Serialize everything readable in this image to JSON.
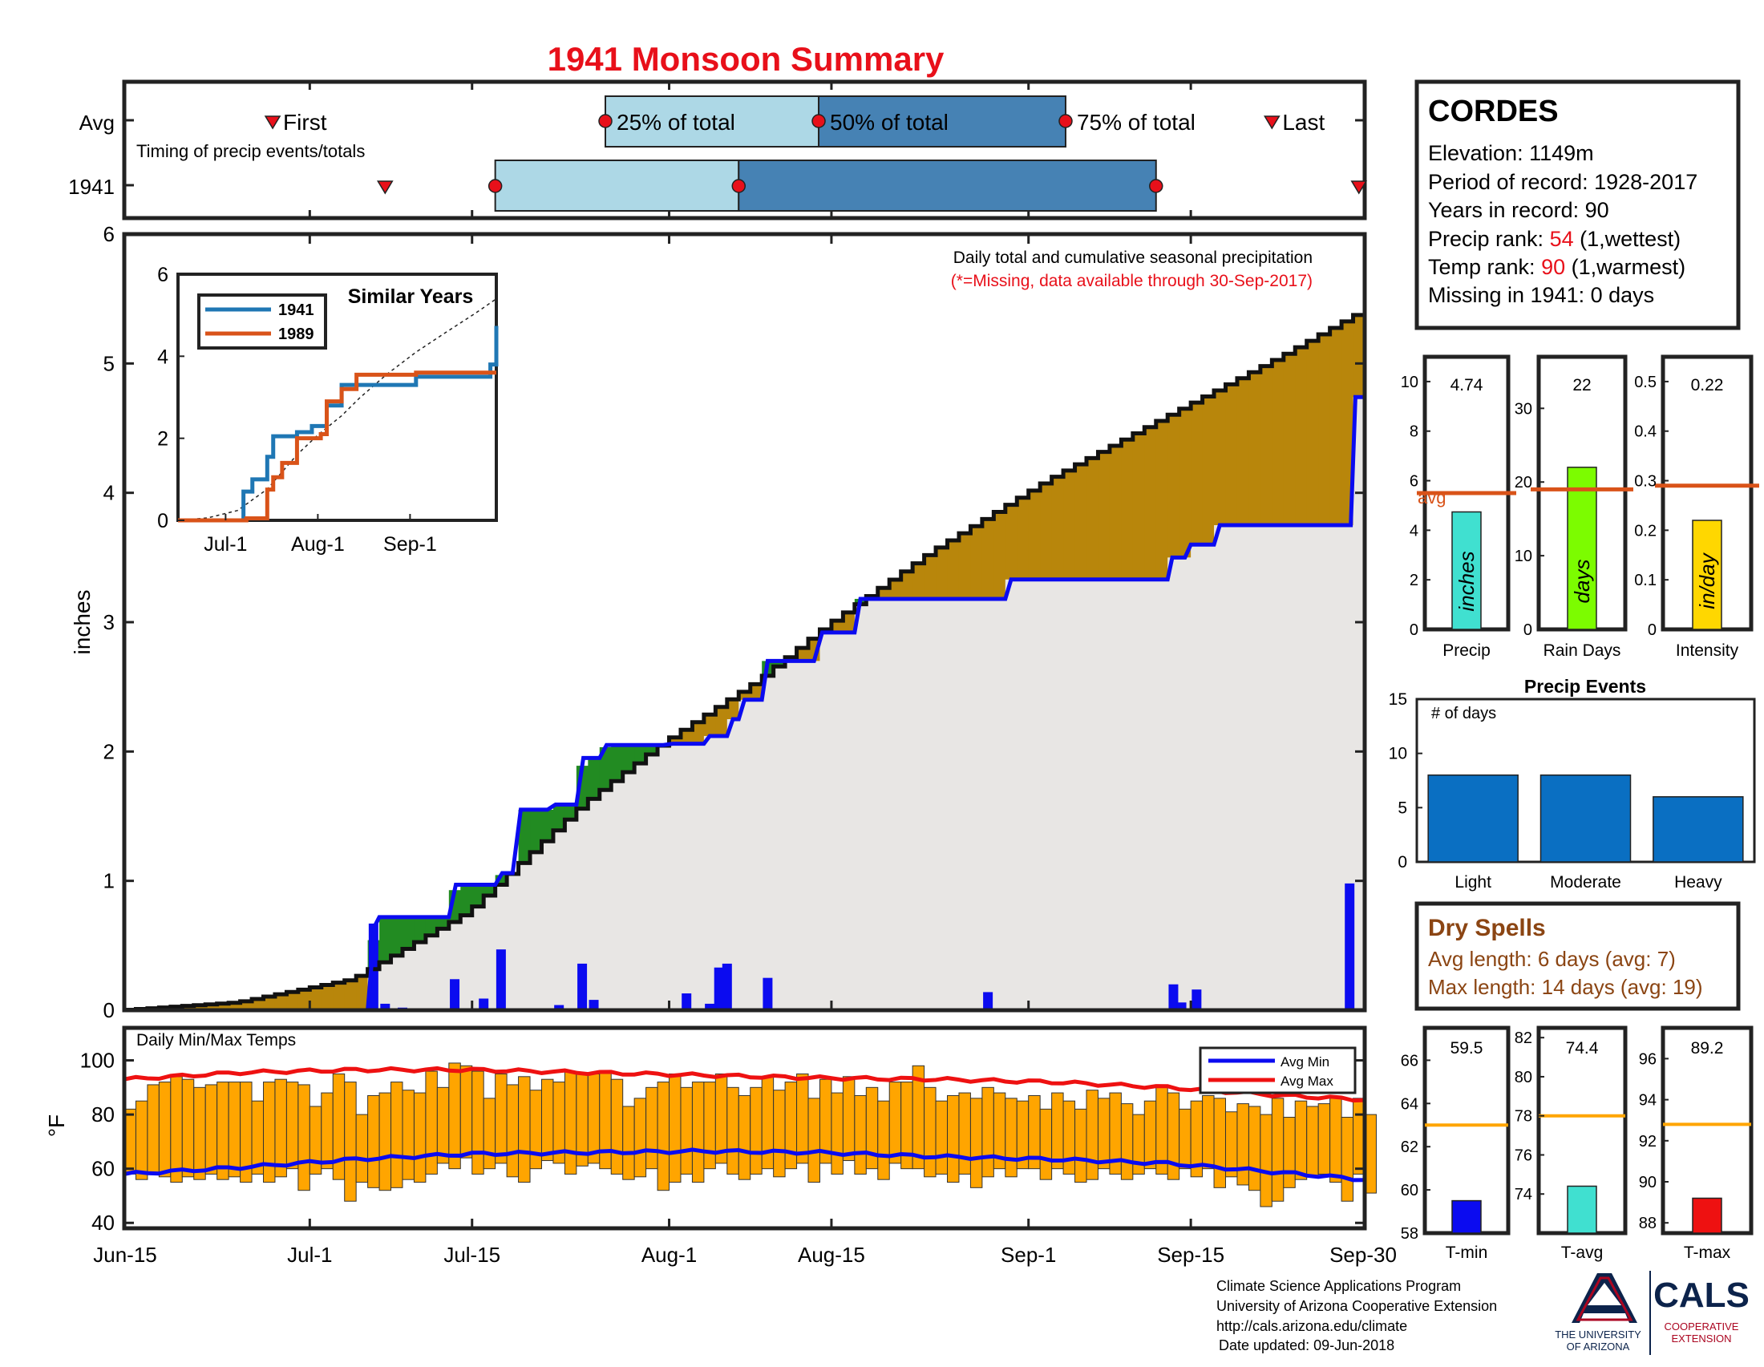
{
  "title": "1941 Monsoon Summary",
  "timing": {
    "label": "Timing of precip events/totals",
    "row_avg": "Avg",
    "row_year": "1941",
    "first": "First",
    "last": "Last",
    "p25": "25% of total",
    "p50": "50% of total",
    "p75": "75% of total",
    "avg_days": {
      "first": 12.8,
      "p25": 41.5,
      "p50": 59.9,
      "p75": 81.2,
      "last": 99.0
    },
    "year_days": {
      "first": 22.5,
      "p25": 32.0,
      "p50": 53.0,
      "p75": 89.0,
      "last": 106.5
    }
  },
  "station": {
    "name": "CORDES",
    "elevation": "Elevation: 1149m",
    "period": "Period of record: 1928-2017",
    "years": "Years in record: 90",
    "precip_rank_label": "Precip rank: ",
    "precip_rank": "54",
    "precip_rank_note": " (1,wettest)",
    "temp_rank_label": "Temp rank: ",
    "temp_rank": "90",
    "temp_rank_note": " (1,warmest)",
    "missing": "Missing in 1941: 0 days"
  },
  "main_chart": {
    "ylabel": "inches",
    "note1": "Daily total and cumulative seasonal precipitation",
    "note2": "(*=Missing, data available through 30-Sep-2017)",
    "x_ticks": [
      "Jun-15",
      "Jul-1",
      "Jul-15",
      "Aug-1",
      "Aug-15",
      "Sep-1",
      "Sep-15",
      "Sep-30"
    ],
    "y_ticks": [
      "0",
      "1",
      "2",
      "3",
      "4",
      "5",
      "6"
    ]
  },
  "inset": {
    "title": "Similar Years",
    "x_ticks": [
      "Jul-1",
      "Aug-1",
      "Sep-1"
    ],
    "y_ticks": [
      "0",
      "2",
      "4",
      "6"
    ],
    "legend": [
      "1941",
      "1989"
    ]
  },
  "bars_small": {
    "precip": {
      "value": "4.74",
      "unit": "inches",
      "label": "Precip",
      "avg_label": "avg"
    },
    "rain_days": {
      "value": "22",
      "unit": "days",
      "label": "Rain Days"
    },
    "intensity": {
      "value": "0.22",
      "unit": "in/day",
      "label": "Intensity"
    }
  },
  "events": {
    "title": "Precip Events",
    "ylabel": "# of days",
    "categories": [
      "Light",
      "Moderate",
      "Heavy"
    ],
    "y_ticks": [
      "0",
      "5",
      "10",
      "15"
    ]
  },
  "dry_spells": {
    "title": "Dry Spells",
    "avg": "Avg length: 6 days (avg: 7)",
    "max": "Max length: 14 days (avg: 19)"
  },
  "temps": {
    "title": "Daily Min/Max Temps",
    "ylabel": "°F",
    "y_ticks": [
      "40",
      "60",
      "80",
      "100"
    ],
    "legend_min": "Avg Min",
    "legend_max": "Avg Max",
    "tmin": {
      "value": "59.5",
      "label": "T-min"
    },
    "tavg": {
      "value": "74.4",
      "label": "T-avg"
    },
    "tmax": {
      "value": "89.2",
      "label": "T-max"
    }
  },
  "footer": {
    "line1": "Climate Science Applications Program",
    "line2": "University of Arizona Cooperative Extension",
    "line3": "http://cals.arizona.edu/climate",
    "line4": "Date updated: 09-Jun-2018",
    "ua1": "THE UNIVERSITY",
    "ua2": "OF ARIZONA",
    "cals": "CALS",
    "cals1": "COOPERATIVE",
    "cals2": "EXTENSION"
  },
  "colors": {
    "title_red": "#e8101a",
    "above": "#228b22",
    "below": "#b8860b",
    "obs": "#0b0bf0",
    "light_blue": "#add8e6",
    "steel": "#4682b4",
    "bar_orange": "#ffa500",
    "dry_brown": "#8b4513"
  },
  "chart_data": [
    {
      "type": "line",
      "title": "Daily total and cumulative seasonal precipitation",
      "ylabel": "inches",
      "xlim_days": [
        0,
        107
      ],
      "ylim": [
        0,
        6
      ],
      "x_date_labels": {
        "0": "Jun-15",
        "16": "Jul-1",
        "30": "Jul-15",
        "47": "Aug-1",
        "61": "Aug-15",
        "78": "Sep-1",
        "92": "Sep-15",
        "107": "Sep-30"
      },
      "series": [
        {
          "name": "1941",
          "x": [
            0,
            21,
            21.6,
            22,
            28,
            28.6,
            32,
            32.6,
            33.5,
            34.2,
            36.5,
            37.2,
            39,
            39.6,
            41,
            41.6,
            46.5,
            47.3,
            50,
            50.5,
            52,
            52.5,
            53,
            53.5,
            55,
            55.5,
            59.5,
            60.2,
            63,
            63.5,
            76,
            76.5,
            90,
            90.4,
            91.5,
            92,
            94,
            94.5,
            105.8,
            106.2,
            107
          ],
          "y": [
            0,
            0,
            0.65,
            0.72,
            0.72,
            0.97,
            0.97,
            1.06,
            1.06,
            1.55,
            1.55,
            1.59,
            1.59,
            1.95,
            1.95,
            2.05,
            2.05,
            2.06,
            2.06,
            2.12,
            2.12,
            2.25,
            2.25,
            2.4,
            2.4,
            2.7,
            2.7,
            2.92,
            2.92,
            3.18,
            3.18,
            3.33,
            3.33,
            3.5,
            3.5,
            3.6,
            3.6,
            3.75,
            3.75,
            4.74,
            4.74
          ]
        },
        {
          "name": "Average",
          "x": [
            0,
            10,
            20,
            30,
            40,
            47,
            55,
            61,
            70,
            80,
            90,
            100,
            107
          ],
          "y": [
            0,
            0.06,
            0.24,
            0.76,
            1.6,
            2.08,
            2.55,
            2.98,
            3.55,
            4.1,
            4.58,
            5.05,
            5.4
          ]
        }
      ]
    },
    {
      "type": "bar",
      "title": "Daily precipitation",
      "ylabel": "inches",
      "x_days": [
        21.5,
        22.5,
        24,
        28.5,
        31,
        32.5,
        37.5,
        39.5,
        40.5,
        48.5,
        50.5,
        51.3,
        52,
        55.5,
        74.5,
        90.5,
        91.2,
        92.5,
        105.7
      ],
      "values": [
        0.67,
        0.05,
        0.02,
        0.24,
        0.09,
        0.47,
        0.04,
        0.36,
        0.08,
        0.13,
        0.05,
        0.33,
        0.36,
        0.25,
        0.14,
        0.2,
        0.06,
        0.16,
        0.98
      ]
    },
    {
      "type": "line",
      "title": "Similar Years",
      "x_labels": [
        "Jul-1",
        "Aug-1",
        "Sep-1"
      ],
      "ylim": [
        0,
        6
      ],
      "series": [
        {
          "name": "1941",
          "x": [
            0,
            21,
            22,
            25,
            30,
            32,
            35,
            40,
            45,
            50,
            55,
            60,
            70,
            80,
            90,
            105,
            107
          ],
          "y": [
            0,
            0,
            0.7,
            1.0,
            1.55,
            2.05,
            2.05,
            2.15,
            2.3,
            2.8,
            3.3,
            3.3,
            3.3,
            3.5,
            3.5,
            3.8,
            4.74
          ]
        },
        {
          "name": "1989",
          "x": [
            0,
            22,
            23,
            30,
            32,
            35,
            40,
            48,
            50,
            55,
            60,
            70,
            80,
            90,
            107
          ],
          "y": [
            0,
            0,
            0.05,
            0.75,
            1.05,
            1.4,
            2.0,
            2.1,
            2.9,
            3.2,
            3.55,
            3.55,
            3.6,
            3.6,
            3.6
          ]
        }
      ]
    },
    {
      "type": "bar",
      "title": "Precip Events",
      "categories": [
        "Light",
        "Moderate",
        "Heavy"
      ],
      "values": [
        8,
        8,
        6
      ],
      "ylim": [
        0,
        15
      ]
    },
    {
      "type": "bar",
      "title": "Season summary",
      "categories": [
        "Precip",
        "Rain Days",
        "Intensity"
      ],
      "values": [
        4.74,
        22,
        0.22
      ],
      "averages": [
        5.5,
        19,
        0.29
      ],
      "ylims": [
        [
          0,
          11
        ],
        [
          0,
          37
        ],
        [
          0,
          0.55
        ]
      ]
    },
    {
      "type": "bar",
      "title": "Daily Min/Max Temps",
      "ylabel": "°F",
      "ylim": [
        38,
        112
      ],
      "x_days_start": 0,
      "tmin": [
        58,
        56,
        58,
        57,
        55,
        57,
        56,
        58,
        56,
        57,
        55,
        58,
        55,
        57,
        60,
        52,
        58,
        60,
        56,
        48,
        55,
        53,
        52,
        53,
        56,
        55,
        58,
        62,
        60,
        64,
        58,
        60,
        62,
        57,
        55,
        60,
        63,
        62,
        58,
        61,
        62,
        60,
        58,
        56,
        57,
        60,
        52,
        55,
        58,
        55,
        60,
        62,
        58,
        56,
        58,
        60,
        57,
        60,
        62,
        55,
        62,
        58,
        63,
        58,
        60,
        56,
        62,
        60,
        60,
        57,
        58,
        55,
        58,
        53,
        57,
        60,
        57,
        60,
        60,
        56,
        60,
        58,
        55,
        56,
        60,
        58,
        56,
        58,
        60,
        58,
        56,
        60,
        57,
        60,
        53,
        57,
        54,
        52,
        46,
        48,
        53,
        56,
        57,
        58,
        55,
        48,
        58,
        51
      ],
      "tmax": [
        82,
        85,
        91,
        92,
        94,
        93,
        90,
        91,
        92,
        92,
        92,
        85,
        92,
        93,
        92,
        91,
        83,
        88,
        95,
        92,
        80,
        87,
        88,
        92,
        89,
        88,
        96,
        90,
        99,
        98,
        96,
        86,
        95,
        91,
        94,
        89,
        93,
        92,
        96,
        95,
        95,
        96,
        93,
        83,
        86,
        90,
        92,
        95,
        90,
        92,
        92,
        95,
        90,
        87,
        90,
        94,
        89,
        92,
        95,
        86,
        93,
        88,
        94,
        87,
        90,
        85,
        92,
        92,
        98,
        90,
        85,
        87,
        88,
        86,
        90,
        88,
        86,
        85,
        87,
        82,
        88,
        85,
        82,
        89,
        86,
        88,
        84,
        80,
        85,
        90,
        88,
        82,
        85,
        87,
        86,
        81,
        84,
        83,
        80,
        86,
        79,
        85,
        83,
        84,
        86,
        79,
        86,
        80
      ],
      "avg_min": {
        "x": [
          0,
          10,
          20,
          30,
          40,
          50,
          60,
          70,
          80,
          90,
          100,
          107
        ],
        "y": [
          58,
          60.5,
          63.5,
          65.5,
          66,
          66.5,
          66,
          64.5,
          63.5,
          62,
          58.5,
          56
        ]
      },
      "avg_max": {
        "x": [
          0,
          10,
          20,
          30,
          40,
          50,
          60,
          70,
          80,
          90,
          100,
          107
        ],
        "y": [
          93,
          95.5,
          96.5,
          96.5,
          95.5,
          94.5,
          93.5,
          93,
          92,
          90,
          87,
          85.5
        ]
      }
    },
    {
      "type": "bar",
      "title": "Temperature summary",
      "categories": [
        "T-min",
        "T-avg",
        "T-max"
      ],
      "values": [
        59.5,
        74.4,
        89.2
      ],
      "averages": [
        63,
        78,
        92.8
      ],
      "ylims": [
        [
          58,
          67.5
        ],
        [
          72,
          82.5
        ],
        [
          87.5,
          97.5
        ]
      ]
    }
  ]
}
